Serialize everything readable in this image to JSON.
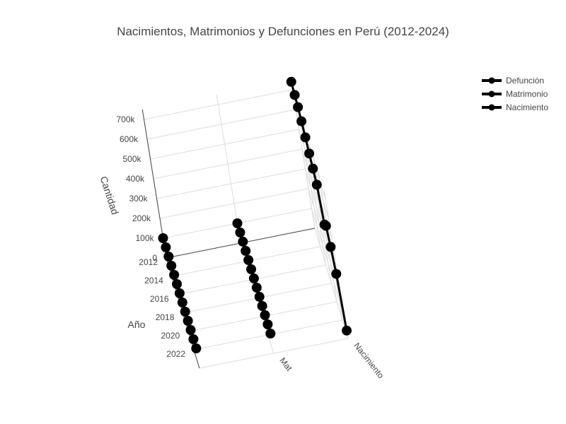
{
  "chart_data": {
    "type": "scatter3d",
    "title": "Nacimientos, Matrimonios y Defunciones en Perú (2012-2024)",
    "axes": {
      "x": {
        "label": "",
        "categories": [
          "Defunción",
          "Matrimonio",
          "Nacimiento"
        ],
        "tick_labels_visible": [
          "",
          "Mat",
          "Nacimiento"
        ]
      },
      "y": {
        "label": "Año",
        "range": [
          2012,
          2024
        ],
        "tick_labels": [
          "2012",
          "2014",
          "2016",
          "2018",
          "2020",
          "2022"
        ]
      },
      "z": {
        "label": "Cantidad",
        "range": [
          0,
          750000
        ],
        "tick_labels": [
          "0",
          "100k",
          "200k",
          "300k",
          "400k",
          "500k",
          "600k",
          "700k"
        ]
      }
    },
    "series": [
      {
        "name": "Defunción",
        "color": "#000000",
        "mode": "lines+markers",
        "points": [
          {
            "year": 2012,
            "value": 100000
          },
          {
            "year": 2013,
            "value": 100000
          },
          {
            "year": 2014,
            "value": 100000
          },
          {
            "year": 2015,
            "value": 100000
          },
          {
            "year": 2016,
            "value": 100000
          },
          {
            "year": 2017,
            "value": 100000
          },
          {
            "year": 2018,
            "value": 100000
          },
          {
            "year": 2019,
            "value": 100000
          },
          {
            "year": 2020,
            "value": 100000
          },
          {
            "year": 2021,
            "value": 100000
          },
          {
            "year": 2022,
            "value": 100000
          },
          {
            "year": 2023,
            "value": 100000
          },
          {
            "year": 2024,
            "value": 100000
          }
        ]
      },
      {
        "name": "Matrimonio",
        "color": "#000000",
        "mode": "lines+markers",
        "points": [
          {
            "year": 2012,
            "value": 100000
          },
          {
            "year": 2013,
            "value": 100000
          },
          {
            "year": 2014,
            "value": 100000
          },
          {
            "year": 2015,
            "value": 100000
          },
          {
            "year": 2016,
            "value": 100000
          },
          {
            "year": 2017,
            "value": 100000
          },
          {
            "year": 2018,
            "value": 100000
          },
          {
            "year": 2019,
            "value": 100000
          },
          {
            "year": 2020,
            "value": 100000
          },
          {
            "year": 2021,
            "value": 100000
          },
          {
            "year": 2022,
            "value": 100000
          },
          {
            "year": 2023,
            "value": 100000
          },
          {
            "year": 2024,
            "value": 100000
          }
        ]
      },
      {
        "name": "Nacimiento",
        "color": "#000000",
        "mode": "lines+markers",
        "points": [
          {
            "year": 2012,
            "value": 740000
          },
          {
            "year": 2013,
            "value": 720000
          },
          {
            "year": 2014,
            "value": 705000
          },
          {
            "year": 2015,
            "value": 680000
          },
          {
            "year": 2016,
            "value": 645000
          },
          {
            "year": 2017,
            "value": 610000
          },
          {
            "year": 2018,
            "value": 580000
          },
          {
            "year": 2019,
            "value": 545000
          },
          {
            "year": 2020,
            "value": 390000
          },
          {
            "year": 2021,
            "value": 430000
          },
          {
            "year": 2022,
            "value": 370000
          },
          {
            "year": 2023,
            "value": 280000
          },
          {
            "year": 2024,
            "value": 40000
          }
        ]
      }
    ],
    "legend": {
      "position": "top-right",
      "entries": [
        "Defunción",
        "Matrimonio",
        "Nacimiento"
      ]
    }
  }
}
